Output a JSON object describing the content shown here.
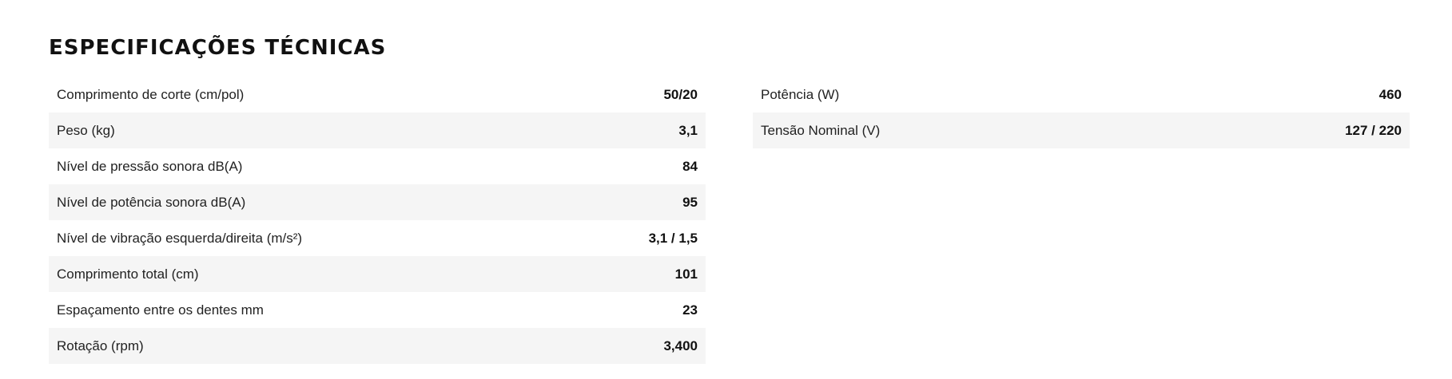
{
  "section": {
    "title": "ESPECIFICAÇÕES TÉCNICAS"
  },
  "specs_left": [
    {
      "label": "Comprimento de corte (cm/pol)",
      "value": "50/20"
    },
    {
      "label": "Peso (kg)",
      "value": "3,1"
    },
    {
      "label": "Nível de pressão sonora dB(A)",
      "value": "84"
    },
    {
      "label": "Nível de potência sonora dB(A)",
      "value": "95"
    },
    {
      "label": "Nível de vibração esquerda/direita (m/s²)",
      "value": "3,1 / 1,5"
    },
    {
      "label": "Comprimento total (cm)",
      "value": "101"
    },
    {
      "label": "Espaçamento entre os dentes mm",
      "value": "23"
    },
    {
      "label": "Rotação (rpm)",
      "value": "3,400"
    }
  ],
  "specs_right": [
    {
      "label": "Potência (W)",
      "value": "460"
    },
    {
      "label": "Tensão Nominal (V)",
      "value": "127 / 220"
    }
  ],
  "colors": {
    "stripe": "#f5f5f5",
    "text": "#111111"
  }
}
